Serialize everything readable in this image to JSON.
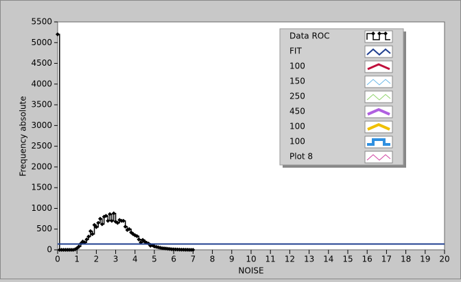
{
  "chart_data": {
    "type": "line",
    "x_label": "NOISE",
    "y_label": "Frequency absolute",
    "xlim": [
      0,
      20
    ],
    "ylim": [
      0,
      5500
    ],
    "xticks": [
      0,
      1,
      2,
      3,
      4,
      5,
      6,
      7,
      8,
      9,
      10,
      11,
      12,
      13,
      14,
      15,
      16,
      17,
      18,
      19,
      20
    ],
    "yticks": [
      0,
      500,
      1000,
      1500,
      2000,
      2500,
      3000,
      3500,
      4000,
      4500,
      5000,
      5500
    ],
    "series": [
      {
        "name": "Data ROC",
        "color": "#000000",
        "style": "step",
        "line_width": 1.5,
        "markers": true,
        "x": [
          0,
          0.1,
          0.2,
          0.3,
          0.4,
          0.5,
          0.6,
          0.7,
          0.8,
          0.9,
          1,
          1.1,
          1.2,
          1.3,
          1.4,
          1.5,
          1.6,
          1.7,
          1.8,
          1.9,
          2,
          2.1,
          2.2,
          2.3,
          2.4,
          2.5,
          2.6,
          2.7,
          2.8,
          2.9,
          3,
          3.1,
          3.2,
          3.3,
          3.4,
          3.5,
          3.6,
          3.7,
          3.8,
          3.9,
          4,
          4.1,
          4.2,
          4.3,
          4.4,
          4.5,
          4.6,
          4.7,
          4.8,
          4.9,
          5,
          5.1,
          5.2,
          5.3,
          5.4,
          5.5,
          5.6,
          5.7,
          5.8,
          5.9,
          6,
          6.1,
          6.2,
          6.3,
          6.4,
          6.5,
          6.6,
          6.7,
          6.8,
          6.9,
          7
        ],
        "values": [
          5200,
          0,
          0,
          0,
          0,
          0,
          0,
          0,
          0,
          10,
          40,
          80,
          150,
          200,
          180,
          250,
          320,
          450,
          380,
          600,
          550,
          650,
          750,
          620,
          800,
          820,
          700,
          860,
          700,
          880,
          680,
          650,
          720,
          700,
          700,
          560,
          480,
          500,
          420,
          380,
          350,
          330,
          250,
          180,
          240,
          200,
          170,
          150,
          100,
          110,
          80,
          70,
          60,
          50,
          40,
          35,
          30,
          25,
          20,
          15,
          12,
          10,
          8,
          6,
          5,
          4,
          3,
          2,
          1,
          1,
          0
        ]
      },
      {
        "name": "FIT",
        "color": "#1f3f8f",
        "style": "line",
        "line_width": 2,
        "markers": false,
        "x": [
          0,
          20
        ],
        "values": [
          140,
          140
        ]
      },
      {
        "name": "100",
        "color": "#c0103c",
        "style": "line",
        "line_width": 3,
        "markers": false,
        "x": [],
        "values": []
      },
      {
        "name": "150",
        "color": "#6ab8e8",
        "style": "line",
        "line_width": 1,
        "markers": false,
        "x": [],
        "values": []
      },
      {
        "name": "250",
        "color": "#8ed46a",
        "style": "line",
        "line_width": 1,
        "markers": false,
        "x": [],
        "values": []
      },
      {
        "name": "450",
        "color": "#b060e0",
        "style": "line",
        "line_width": 4,
        "markers": false,
        "x": [],
        "values": []
      },
      {
        "name": "100",
        "color": "#f0c000",
        "style": "line",
        "line_width": 4,
        "markers": false,
        "x": [],
        "values": []
      },
      {
        "name": "100",
        "color": "#3090e0",
        "style": "square",
        "line_width": 4,
        "markers": false,
        "x": [],
        "values": []
      },
      {
        "name": "Plot 8",
        "color": "#d040a0",
        "style": "line",
        "line_width": 1,
        "markers": false,
        "x": [],
        "values": []
      }
    ]
  }
}
